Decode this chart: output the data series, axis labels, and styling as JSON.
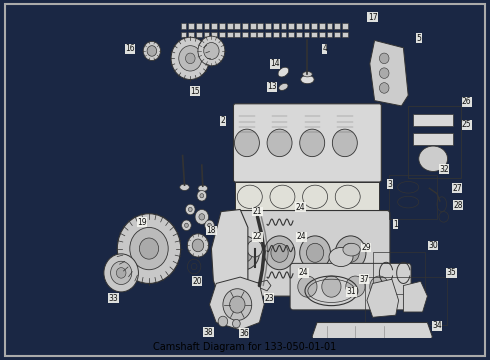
{
  "title": "Camshaft Diagram for 133-050-01-01",
  "bg": "#1a2744",
  "fg": "#ffffff",
  "drawing_bg": "#f5f5f0",
  "lc": "#333333",
  "figure_width": 4.9,
  "figure_height": 3.6,
  "dpi": 100,
  "label_fs": 5.5
}
